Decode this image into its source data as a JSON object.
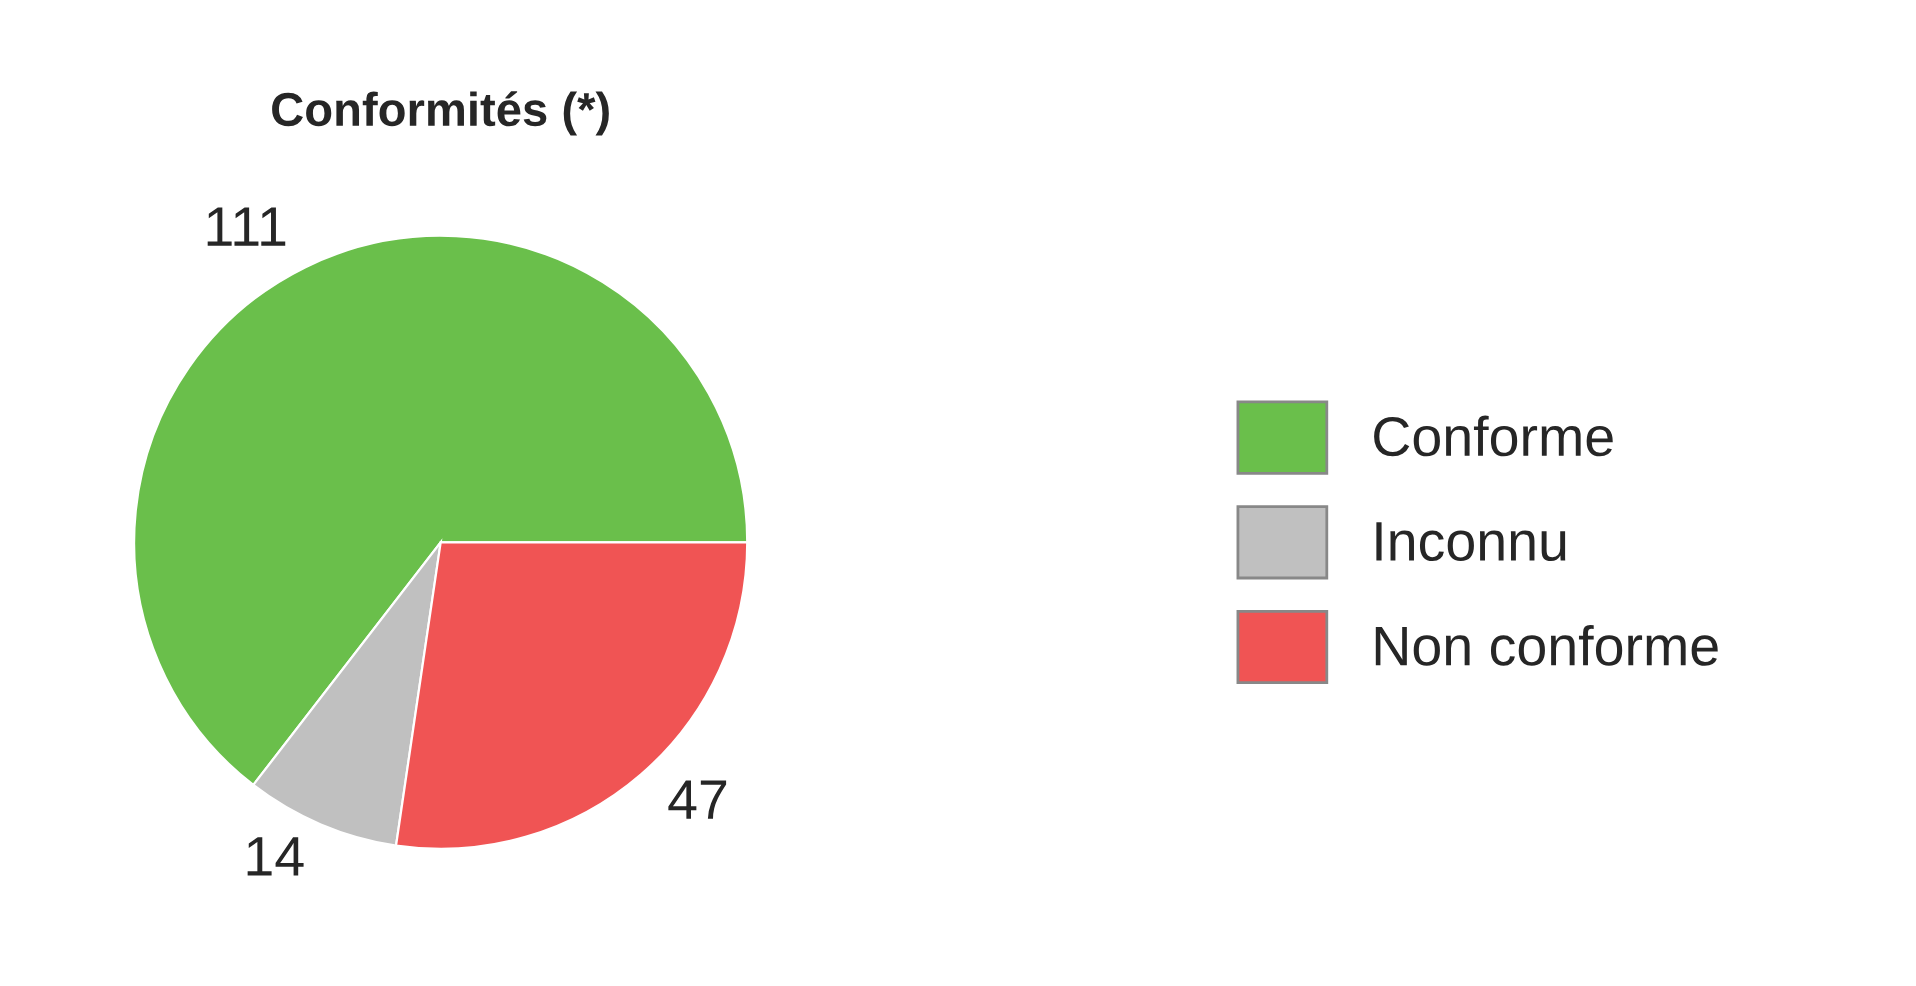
{
  "chart_data": {
    "type": "pie",
    "title": "Conformités (*)",
    "categories": [
      "Conforme",
      "Inconnu",
      "Non conforme"
    ],
    "values": [
      111,
      14,
      47
    ],
    "colors": [
      "#6abf4b",
      "#c0c0c0",
      "#f05454"
    ],
    "data_labels": true,
    "legend": "right"
  }
}
